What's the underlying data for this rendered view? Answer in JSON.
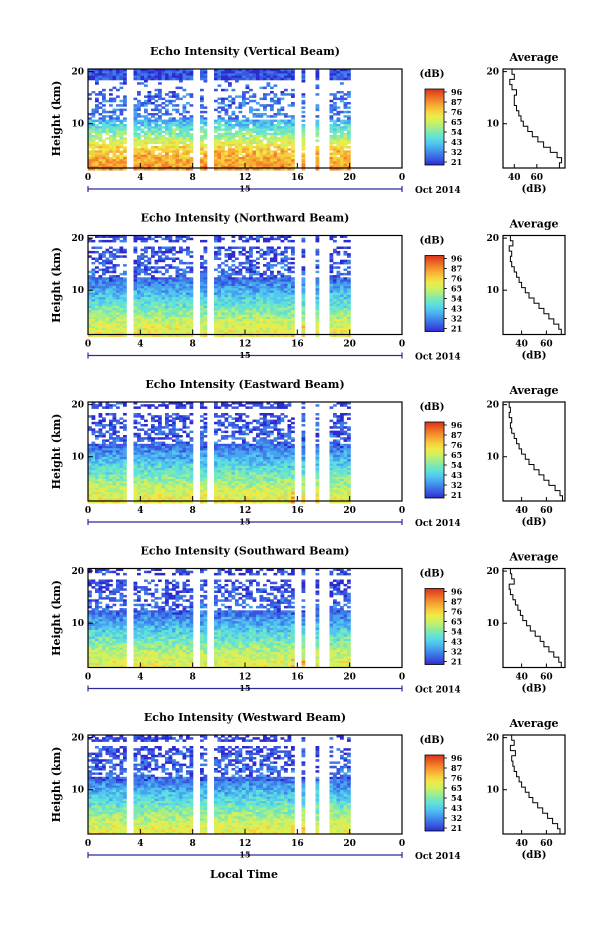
{
  "figure": {
    "xlabel": "Local Time",
    "date_caption": "Oct 2014",
    "ylabel": "Height (km)",
    "avg_title": "Average",
    "avg_xlabel": "(dB)",
    "colorbar_unit": "(dB)",
    "day_label": "15",
    "colorbar_ticks": [
      "96",
      "87",
      "76",
      "65",
      "54",
      "43",
      "32",
      "21"
    ]
  },
  "palette": [
    "#2b2bd0",
    "#3a55e0",
    "#3d7de8",
    "#47a3ef",
    "#52c6ef",
    "#5ee0dc",
    "#7ce8b3",
    "#a8ee85",
    "#d0f060",
    "#eeea48",
    "#f6cf3e",
    "#f7aa34",
    "#f2832b",
    "#e75a22",
    "#d8341b"
  ],
  "chart_data": [
    {
      "type": "heatmap",
      "title": "Echo Intensity (Vertical Beam)",
      "x_ticks": [
        "0",
        "4",
        "8",
        "12",
        "16",
        "20",
        "0"
      ],
      "y_ticks": [
        "20",
        "10"
      ],
      "xlim": [
        0,
        24
      ],
      "ylim": [
        1.5,
        20.5
      ],
      "colorbar": {
        "unit": "(dB)",
        "ticks": [
          96,
          87,
          76,
          65,
          54,
          43,
          32,
          21
        ]
      },
      "data_gaps_hours": [
        [
          3.0,
          3.3
        ],
        [
          8.2,
          8.5
        ],
        [
          9.1,
          9.4
        ],
        [
          15.9,
          16.3
        ],
        [
          16.8,
          17.2
        ],
        [
          17.8,
          18.3
        ]
      ],
      "average_profile": {
        "title": "Average",
        "xlabel": "(dB)",
        "x_ticks": [
          "40",
          "60"
        ],
        "y_ticks": [
          "20",
          "10"
        ],
        "xlim": [
          30,
          85
        ],
        "ylim": [
          1.5,
          20.5
        ],
        "height_km": [
          2,
          3,
          4,
          5,
          6,
          7,
          8,
          9,
          10,
          11,
          12,
          13,
          14,
          15,
          16,
          17,
          18,
          19,
          20
        ],
        "intensity_db": [
          80,
          82,
          78,
          72,
          66,
          61,
          56,
          52,
          48,
          46,
          44,
          42,
          40,
          40,
          42,
          38,
          36,
          40,
          38
        ]
      }
    },
    {
      "type": "heatmap",
      "title": "Echo Intensity (Northward Beam)",
      "x_ticks": [
        "0",
        "4",
        "8",
        "12",
        "16",
        "20",
        "0"
      ],
      "y_ticks": [
        "20",
        "10"
      ],
      "xlim": [
        0,
        24
      ],
      "ylim": [
        1.5,
        20.5
      ],
      "colorbar": {
        "unit": "(dB)",
        "ticks": [
          96,
          87,
          76,
          65,
          54,
          43,
          32,
          21
        ]
      },
      "data_gaps_hours": [
        [
          3.0,
          3.3
        ],
        [
          8.2,
          8.5
        ],
        [
          9.1,
          9.4
        ],
        [
          15.9,
          16.3
        ],
        [
          16.8,
          17.2
        ],
        [
          17.8,
          18.3
        ]
      ],
      "average_profile": {
        "title": "Average",
        "xlabel": "(dB)",
        "x_ticks": [
          "40",
          "60"
        ],
        "y_ticks": [
          "20",
          "10"
        ],
        "xlim": [
          25,
          75
        ],
        "ylim": [
          1.5,
          20.5
        ],
        "height_km": [
          2,
          3,
          4,
          5,
          6,
          7,
          8,
          9,
          10,
          11,
          12,
          13,
          14,
          15,
          16,
          17,
          18,
          19,
          20
        ],
        "intensity_db": [
          72,
          70,
          66,
          62,
          58,
          54,
          50,
          46,
          43,
          40,
          38,
          36,
          34,
          32,
          31,
          32,
          30,
          33,
          31
        ]
      }
    },
    {
      "type": "heatmap",
      "title": "Echo Intensity (Eastward Beam)",
      "x_ticks": [
        "0",
        "4",
        "8",
        "12",
        "16",
        "20",
        "0"
      ],
      "y_ticks": [
        "20",
        "10"
      ],
      "xlim": [
        0,
        24
      ],
      "ylim": [
        1.5,
        20.5
      ],
      "colorbar": {
        "unit": "(dB)",
        "ticks": [
          96,
          87,
          76,
          65,
          54,
          43,
          32,
          21
        ]
      },
      "data_gaps_hours": [
        [
          3.0,
          3.3
        ],
        [
          8.2,
          8.5
        ],
        [
          9.1,
          9.4
        ],
        [
          15.9,
          16.3
        ],
        [
          16.8,
          17.2
        ],
        [
          17.8,
          18.3
        ]
      ],
      "average_profile": {
        "title": "Average",
        "xlabel": "(dB)",
        "x_ticks": [
          "40",
          "60"
        ],
        "y_ticks": [
          "20",
          "10"
        ],
        "xlim": [
          25,
          75
        ],
        "ylim": [
          1.5,
          20.5
        ],
        "height_km": [
          2,
          3,
          4,
          5,
          6,
          7,
          8,
          9,
          10,
          11,
          12,
          13,
          14,
          15,
          16,
          17,
          18,
          19,
          20
        ],
        "intensity_db": [
          73,
          71,
          67,
          62,
          58,
          54,
          50,
          46,
          43,
          40,
          38,
          36,
          34,
          32,
          31,
          32,
          30,
          31,
          30
        ]
      }
    },
    {
      "type": "heatmap",
      "title": "Echo Intensity (Southward Beam)",
      "x_ticks": [
        "0",
        "4",
        "8",
        "12",
        "16",
        "20",
        "0"
      ],
      "y_ticks": [
        "20",
        "10"
      ],
      "xlim": [
        0,
        24
      ],
      "ylim": [
        1.5,
        20.5
      ],
      "colorbar": {
        "unit": "(dB)",
        "ticks": [
          96,
          87,
          76,
          65,
          54,
          43,
          32,
          21
        ]
      },
      "data_gaps_hours": [
        [
          3.0,
          3.3
        ],
        [
          8.2,
          8.5
        ],
        [
          9.1,
          9.4
        ],
        [
          15.9,
          16.3
        ],
        [
          16.8,
          17.2
        ],
        [
          17.8,
          18.3
        ]
      ],
      "average_profile": {
        "title": "Average",
        "xlabel": "(dB)",
        "x_ticks": [
          "40",
          "60"
        ],
        "y_ticks": [
          "20",
          "10"
        ],
        "xlim": [
          25,
          75
        ],
        "ylim": [
          1.5,
          20.5
        ],
        "height_km": [
          2,
          3,
          4,
          5,
          6,
          7,
          8,
          9,
          10,
          11,
          12,
          13,
          14,
          15,
          16,
          17,
          18,
          19,
          20
        ],
        "intensity_db": [
          72,
          70,
          66,
          62,
          58,
          55,
          51,
          47,
          44,
          41,
          39,
          37,
          35,
          33,
          31,
          30,
          34,
          32,
          31
        ]
      }
    },
    {
      "type": "heatmap",
      "title": "Echo Intensity (Westward Beam)",
      "x_ticks": [
        "0",
        "4",
        "8",
        "12",
        "16",
        "20",
        "0"
      ],
      "y_ticks": [
        "20",
        "10"
      ],
      "xlim": [
        0,
        24
      ],
      "ylim": [
        1.5,
        20.5
      ],
      "colorbar": {
        "unit": "(dB)",
        "ticks": [
          96,
          87,
          76,
          65,
          54,
          43,
          32,
          21
        ]
      },
      "data_gaps_hours": [
        [
          3.0,
          3.3
        ],
        [
          8.2,
          8.5
        ],
        [
          9.1,
          9.4
        ],
        [
          15.9,
          16.3
        ],
        [
          16.8,
          17.2
        ],
        [
          17.8,
          18.3
        ]
      ],
      "average_profile": {
        "title": "Average",
        "xlabel": "(dB)",
        "x_ticks": [
          "40",
          "60"
        ],
        "y_ticks": [
          "20",
          "10"
        ],
        "xlim": [
          25,
          75
        ],
        "ylim": [
          1.5,
          20.5
        ],
        "height_km": [
          2,
          3,
          4,
          5,
          6,
          7,
          8,
          9,
          10,
          11,
          12,
          13,
          14,
          15,
          16,
          17,
          18,
          19,
          20
        ],
        "intensity_db": [
          71,
          69,
          65,
          61,
          57,
          53,
          49,
          46,
          43,
          40,
          38,
          36,
          34,
          33,
          32,
          35,
          31,
          34,
          32
        ]
      }
    }
  ]
}
